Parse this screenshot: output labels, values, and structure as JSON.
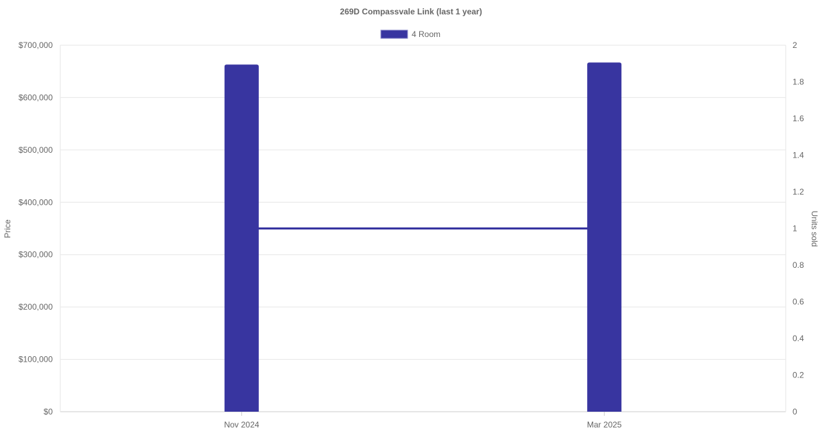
{
  "chart_data": {
    "type": "bar",
    "title": "269D Compassvale Link (last 1 year)",
    "categories": [
      "Nov 2024",
      "Mar 2025"
    ],
    "legend": {
      "position": "top",
      "entries": [
        "4 Room"
      ]
    },
    "series": [
      {
        "name": "4 Room",
        "type": "bar",
        "axis": "left",
        "values": [
          663000,
          667000
        ],
        "color": "#3835a0"
      },
      {
        "type": "line",
        "axis": "right",
        "values": [
          1,
          1
        ],
        "color": "#3835a0"
      }
    ],
    "ylabel": "Price",
    "y2label": "Units sold",
    "ylim": [
      0,
      700000
    ],
    "y2lim": [
      0,
      2
    ],
    "yticks": [
      "$0",
      "$100,000",
      "$200,000",
      "$300,000",
      "$400,000",
      "$500,000",
      "$600,000",
      "$700,000"
    ],
    "y2ticks": [
      "0",
      "0.2",
      "0.4",
      "0.6",
      "0.8",
      "1",
      "1.2",
      "1.4",
      "1.6",
      "1.8",
      "2"
    ],
    "grid": true
  }
}
